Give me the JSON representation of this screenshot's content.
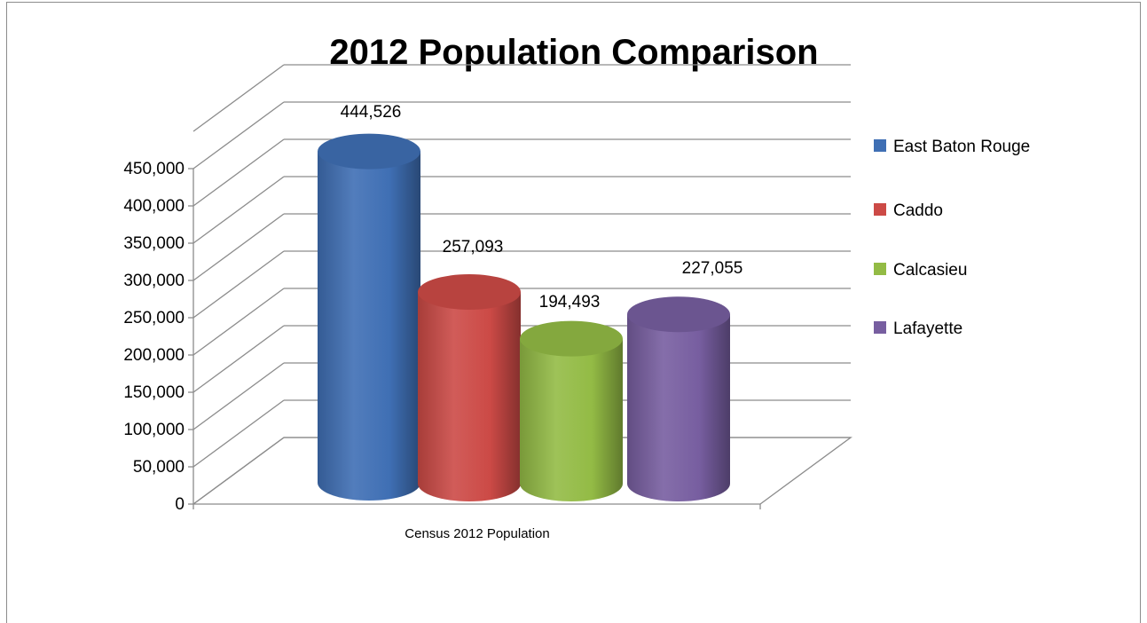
{
  "chart_data": {
    "type": "bar",
    "title": "2012 Population Comparison",
    "categories": [
      "Census 2012 Population"
    ],
    "series": [
      {
        "name": "East Baton Rouge",
        "values": [
          444526
        ],
        "value_label": "444,526",
        "color": "#3f6fb4"
      },
      {
        "name": "Caddo",
        "values": [
          257093
        ],
        "value_label": "257,093",
        "color": "#cc4a46"
      },
      {
        "name": "Calcasieu",
        "values": [
          194493
        ],
        "value_label": "194,493",
        "color": "#93bb45"
      },
      {
        "name": "Lafayette",
        "values": [
          227055
        ],
        "value_label": "227,055",
        "color": "#775ea0"
      }
    ],
    "ylim": [
      0,
      450000
    ],
    "y_ticks": [
      "0",
      "50,000",
      "100,000",
      "150,000",
      "200,000",
      "250,000",
      "300,000",
      "350,000",
      "400,000",
      "450,000"
    ],
    "grid": true,
    "legend": "right",
    "style": "3d-cylinder"
  }
}
